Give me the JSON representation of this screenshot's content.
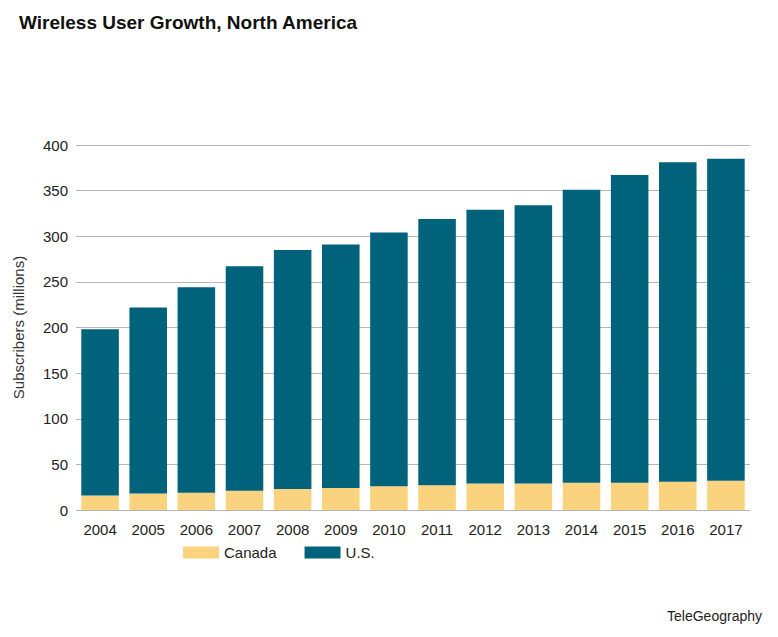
{
  "chart_data": {
    "type": "bar",
    "title": "Wireless User Growth, North America",
    "y_label": "Subscribers (millions)",
    "categories": [
      "2004",
      "2005",
      "2006",
      "2007",
      "2008",
      "2009",
      "2010",
      "2011",
      "2012",
      "2013",
      "2014",
      "2015",
      "2016",
      "2017"
    ],
    "series": [
      {
        "name": "Canada",
        "color": "#fbd27e",
        "values": [
          16,
          18,
          19,
          21,
          23,
          24,
          26,
          27,
          29,
          29,
          30,
          30,
          31,
          32
        ]
      },
      {
        "name": "U.S.",
        "color": "#00627b",
        "values": [
          182,
          204,
          225,
          246,
          262,
          267,
          278,
          292,
          300,
          305,
          321,
          337,
          350,
          353
        ]
      }
    ],
    "stacked": true,
    "ylim": [
      0,
      400
    ],
    "yticks": [
      0,
      50,
      100,
      150,
      200,
      250,
      300,
      350,
      400
    ],
    "grid": true,
    "legend": "bottom",
    "annotations": [
      "TeleGeography"
    ]
  }
}
